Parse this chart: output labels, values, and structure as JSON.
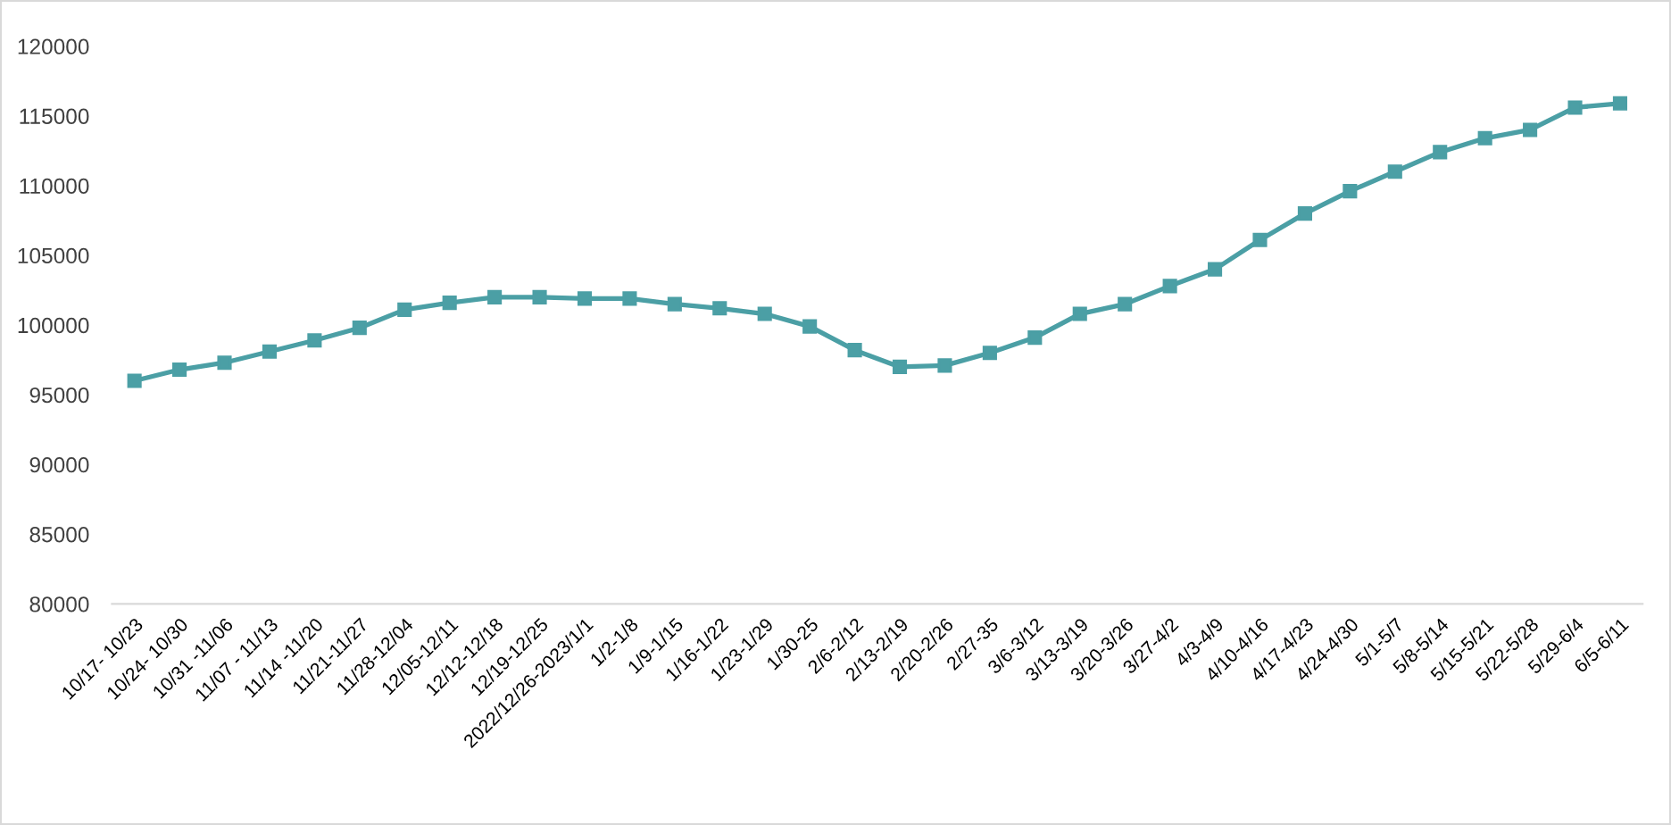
{
  "chart_data": {
    "type": "line",
    "categories": [
      "10/17- 10/23",
      "10/24- 10/30",
      "10/31 -11/06",
      "11/07 - 11/13",
      "11/14 -11/20",
      "11/21-11/27",
      "11/28-12/04",
      "12/05-12/11",
      "12/12-12/18",
      "12/19-12/25",
      "2022/12/26-2023/1/1",
      "1/2-1/8",
      "1/9-1/15",
      "1/16-1/22",
      "1/23-1/29",
      "1/30-25",
      "2/6-2/12",
      "2/13-2/19",
      "2/20-2/26",
      "2/27-35",
      "3/6-3/12",
      "3/13-3/19",
      "3/20-3/26",
      "3/27-4/2",
      "4/3-4/9",
      "4/10-4/16",
      "4/17-4/23",
      "4/24-4/30",
      "5/1-5/7",
      "5/8-5/14",
      "5/15-5/21",
      "5/22-5/28",
      "5/29-6/4",
      "6/5-6/11"
    ],
    "series": [
      {
        "color": "#4b9fa5",
        "values": [
          96000,
          96800,
          97300,
          98100,
          98900,
          99800,
          101100,
          101600,
          102000,
          102000,
          101900,
          101900,
          101500,
          101200,
          100800,
          99900,
          98200,
          97000,
          97100,
          98000,
          99100,
          100800,
          101500,
          102800,
          104000,
          106100,
          108000,
          109600,
          111000,
          112400,
          113400,
          114000,
          115600,
          115900
        ]
      }
    ],
    "ylim": [
      80000,
      120000
    ],
    "yticks": [
      80000,
      85000,
      90000,
      95000,
      100000,
      105000,
      110000,
      115000,
      120000
    ],
    "marker": "square",
    "line_style": "solid"
  }
}
